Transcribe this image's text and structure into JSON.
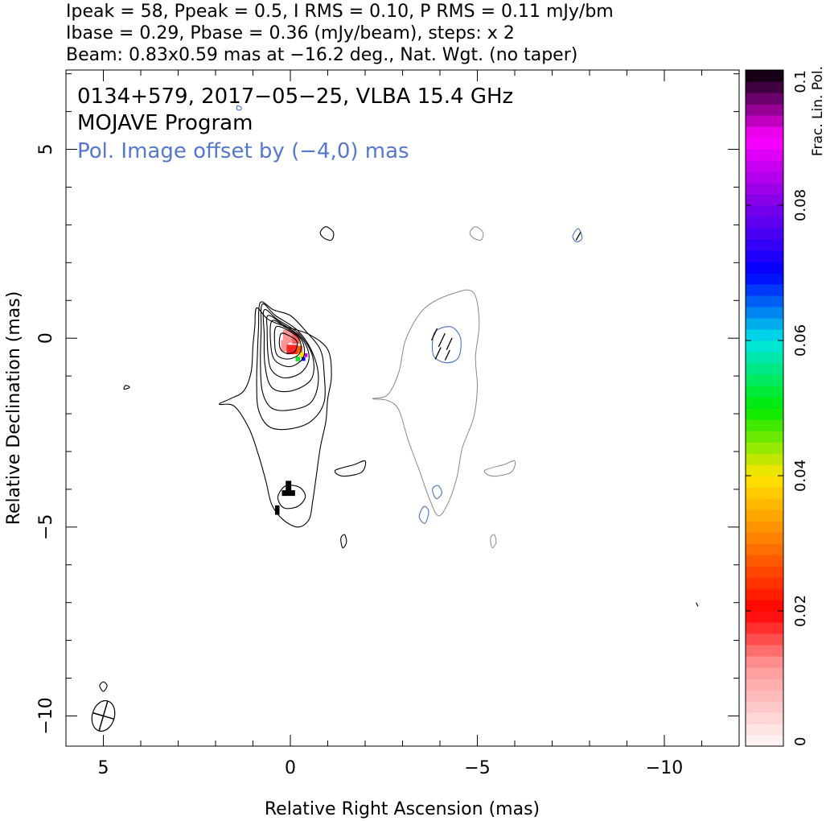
{
  "header": {
    "line1": "Ipeak = 58, Ppeak = 0.5, I RMS = 0.10, P RMS = 0.11 mJy/bm",
    "line2": "Ibase = 0.29, Pbase = 0.36 (mJy/beam), steps: x 2",
    "line3": "Beam: 0.83x0.59 mas at −16.2 deg., Nat. Wgt. (no taper)"
  },
  "chart_data": {
    "type": "contour",
    "title": "0134+579, 2017−05−25, VLBA 15.4 GHz",
    "subtitle": "MOJAVE Program",
    "annotation": "Pol. Image offset by (−4,0) mas",
    "xlabel": "Relative Right Ascension (mas)",
    "ylabel": "Relative Declination (mas)",
    "xlim": [
      6,
      -12
    ],
    "ylim": [
      -10.8,
      7.1
    ],
    "x_ticks": [
      5,
      0,
      -5,
      -10
    ],
    "y_ticks": [
      5,
      0,
      -5,
      -10
    ],
    "x_tick_labels": [
      "5",
      "0",
      "−5",
      "−10"
    ],
    "y_tick_labels": [
      "5",
      "0",
      "−5",
      "−10"
    ],
    "colorbar": {
      "label": "Frac. Lin. Pol.",
      "range": [
        0,
        0.1
      ],
      "ticks": [
        0,
        0.02,
        0.04,
        0.06,
        0.08,
        0.1
      ],
      "tick_labels": [
        "0",
        "0.02",
        "0.04",
        "0.06",
        "0.08",
        "0.1"
      ]
    },
    "beam": {
      "major_mas": 0.83,
      "minor_mas": 0.59,
      "pa_deg": -16.2,
      "center": [
        5,
        -10.0
      ]
    },
    "contour_levels_mjy": [
      0.29,
      0.58,
      1.16,
      2.32,
      4.64,
      9.28,
      18.56,
      37.12
    ],
    "core": {
      "x": 0,
      "y": 0,
      "peak_mjy": 58
    },
    "total_intensity_contours": [
      {
        "level": 1,
        "points": [
          [
            0.9,
            0.8
          ],
          [
            0.6,
            0.5
          ],
          [
            0.1,
            0.3
          ],
          [
            -0.5,
            0.1
          ],
          [
            -1,
            -0.3
          ],
          [
            -1.1,
            -1
          ],
          [
            -1,
            -1.6
          ],
          [
            -0.95,
            -2.2
          ],
          [
            -0.8,
            -2.9
          ],
          [
            -0.7,
            -3.6
          ],
          [
            -0.6,
            -4.3
          ],
          [
            -0.5,
            -4.8
          ],
          [
            -0.2,
            -5
          ],
          [
            0.2,
            -4.8
          ],
          [
            0.5,
            -4.4
          ],
          [
            0.65,
            -3.8
          ],
          [
            0.85,
            -3.1
          ],
          [
            1.1,
            -2.4
          ],
          [
            1.5,
            -1.8
          ],
          [
            1.9,
            -1.75
          ],
          [
            1.6,
            -1.6
          ],
          [
            1.25,
            -1.4
          ],
          [
            1.05,
            -0.9
          ],
          [
            1,
            -0.2
          ],
          [
            0.95,
            0.3
          ]
        ]
      },
      {
        "level": 2,
        "points": [
          [
            0.8,
            0.95
          ],
          [
            0.45,
            0.75
          ],
          [
            0,
            0.6
          ],
          [
            -0.4,
            0.2
          ],
          [
            -0.8,
            -0.3
          ],
          [
            -0.9,
            -0.9
          ],
          [
            -0.9,
            -1.7
          ],
          [
            -0.55,
            -2.2
          ],
          [
            0,
            -2.4
          ],
          [
            0.55,
            -2.35
          ],
          [
            0.85,
            -1.9
          ],
          [
            0.9,
            -1.2
          ],
          [
            0.88,
            -0.4
          ],
          [
            0.85,
            0.3
          ]
        ]
      },
      {
        "level": 3,
        "points": [
          [
            0.75,
            0.9
          ],
          [
            0.4,
            0.6
          ],
          [
            -0.2,
            0.2
          ],
          [
            -0.6,
            -0.4
          ],
          [
            -0.75,
            -1.1
          ],
          [
            -0.55,
            -1.7
          ],
          [
            0,
            -1.9
          ],
          [
            0.5,
            -1.85
          ],
          [
            0.75,
            -1.4
          ],
          [
            0.8,
            -0.6
          ],
          [
            0.78,
            0.2
          ]
        ]
      },
      {
        "level": 4,
        "points": [
          [
            0.7,
            0.75
          ],
          [
            0.35,
            0.5
          ],
          [
            -0.25,
            0.1
          ],
          [
            -0.6,
            -0.5
          ],
          [
            -0.55,
            -1.1
          ],
          [
            0,
            -1.4
          ],
          [
            0.5,
            -1.3
          ],
          [
            0.68,
            -0.7
          ],
          [
            0.7,
            0.1
          ]
        ]
      },
      {
        "level": 5,
        "points": [
          [
            0.6,
            0.6
          ],
          [
            0.25,
            0.4
          ],
          [
            -0.3,
            0
          ],
          [
            -0.5,
            -0.5
          ],
          [
            -0.3,
            -0.9
          ],
          [
            0.15,
            -1.05
          ],
          [
            0.5,
            -0.85
          ],
          [
            0.6,
            -0.4
          ],
          [
            0.62,
            0.2
          ]
        ]
      },
      {
        "level": 6,
        "points": [
          [
            0.5,
            0.45
          ],
          [
            0.15,
            0.3
          ],
          [
            -0.3,
            -0.05
          ],
          [
            -0.35,
            -0.5
          ],
          [
            0,
            -0.75
          ],
          [
            0.4,
            -0.6
          ],
          [
            0.52,
            -0.2
          ]
        ]
      },
      {
        "level": 7,
        "points": [
          [
            0.38,
            0.3
          ],
          [
            0.05,
            0.2
          ],
          [
            -0.25,
            -0.05
          ],
          [
            -0.25,
            -0.4
          ],
          [
            0.05,
            -0.55
          ],
          [
            0.35,
            -0.45
          ],
          [
            0.42,
            -0.1
          ]
        ]
      },
      {
        "level": 8,
        "points": [
          [
            0.25,
            0.12
          ],
          [
            0,
            0.05
          ],
          [
            -0.18,
            -0.1
          ],
          [
            -0.12,
            -0.35
          ],
          [
            0.1,
            -0.4
          ],
          [
            0.28,
            -0.25
          ]
        ]
      },
      {
        "level": 1,
        "points": [
          [
            0.3,
            -4.1
          ],
          [
            0.1,
            -3.9
          ],
          [
            -0.25,
            -3.95
          ],
          [
            -0.4,
            -4.2
          ],
          [
            -0.2,
            -4.45
          ],
          [
            0.15,
            -4.5
          ],
          [
            0.32,
            -4.3
          ]
        ]
      },
      {
        "level": 1,
        "points": [
          [
            -1.2,
            -3.5
          ],
          [
            -1.7,
            -3.35
          ],
          [
            -2,
            -3.25
          ],
          [
            -1.9,
            -3.55
          ],
          [
            -1.4,
            -3.65
          ]
        ]
      },
      {
        "level": 1,
        "points": [
          [
            -0.8,
            2.8
          ],
          [
            -0.9,
            2.65
          ],
          [
            -1.1,
            2.6
          ],
          [
            -1.15,
            2.8
          ],
          [
            -0.95,
            2.95
          ]
        ]
      },
      {
        "level": 1,
        "points": [
          [
            -1.35,
            -5.3
          ],
          [
            -1.45,
            -5.2
          ],
          [
            -1.5,
            -5.4
          ],
          [
            -1.4,
            -5.55
          ]
        ]
      },
      {
        "level": 1,
        "points": [
          [
            4.3,
            -1.3
          ],
          [
            4.4,
            -1.25
          ],
          [
            4.45,
            -1.35
          ]
        ]
      },
      {
        "level": 1,
        "points": [
          [
            5,
            -9.1
          ],
          [
            4.9,
            -9.2
          ],
          [
            5,
            -9.35
          ],
          [
            5.1,
            -9.2
          ]
        ]
      },
      {
        "level": 1,
        "points": [
          [
            -10.85,
            -7.0
          ],
          [
            -10.9,
            -7.1
          ]
        ]
      }
    ],
    "offset_image_contours": [
      {
        "points": [
          [
            -4.9,
            1.2
          ],
          [
            -4.4,
            1.2
          ],
          [
            -3.6,
            0.8
          ],
          [
            -3.1,
            0
          ],
          [
            -2.9,
            -0.9
          ],
          [
            -2.6,
            -1.5
          ],
          [
            -2.2,
            -1.6
          ],
          [
            -2.6,
            -1.65
          ],
          [
            -2.9,
            -1.9
          ],
          [
            -3.15,
            -2.7
          ],
          [
            -3.45,
            -3.5
          ],
          [
            -3.7,
            -4.2
          ],
          [
            -3.95,
            -4.7
          ],
          [
            -4.2,
            -4.4
          ],
          [
            -4.45,
            -3.7
          ],
          [
            -4.6,
            -2.9
          ],
          [
            -4.9,
            -2.1
          ],
          [
            -5,
            -1.3
          ],
          [
            -4.95,
            -0.5
          ],
          [
            -5.05,
            0.4
          ]
        ]
      },
      {
        "points": [
          [
            -5.2,
            -3.5
          ],
          [
            -5.7,
            -3.35
          ],
          [
            -6,
            -3.25
          ],
          [
            -5.9,
            -3.55
          ],
          [
            -5.4,
            -3.65
          ]
        ]
      },
      {
        "points": [
          [
            -4.8,
            2.8
          ],
          [
            -4.9,
            2.65
          ],
          [
            -5.1,
            2.6
          ],
          [
            -5.15,
            2.8
          ],
          [
            -4.95,
            2.95
          ]
        ]
      },
      {
        "points": [
          [
            -5.35,
            -5.3
          ],
          [
            -5.45,
            -5.2
          ],
          [
            -5.5,
            -5.4
          ],
          [
            -5.4,
            -5.55
          ]
        ]
      }
    ],
    "polarization_contours": [
      {
        "points": [
          [
            -3.9,
            0.2
          ],
          [
            -4.3,
            0.3
          ],
          [
            -4.55,
            0
          ],
          [
            -4.5,
            -0.5
          ],
          [
            -4.2,
            -0.65
          ],
          [
            -3.85,
            -0.5
          ],
          [
            -3.8,
            -0.1
          ]
        ]
      },
      {
        "points": [
          [
            -3.8,
            -4.0
          ],
          [
            -3.95,
            -3.9
          ],
          [
            -4.05,
            -4.1
          ],
          [
            -3.9,
            -4.25
          ]
        ]
      },
      {
        "points": [
          [
            -3.5,
            -4.55
          ],
          [
            -3.6,
            -4.45
          ],
          [
            -3.7,
            -4.6
          ],
          [
            -3.6,
            -4.9
          ],
          [
            -3.45,
            -4.75
          ]
        ]
      },
      {
        "points": [
          [
            -7.8,
            2.65
          ],
          [
            -7.65,
            2.55
          ],
          [
            -7.55,
            2.7
          ],
          [
            -7.7,
            2.9
          ]
        ]
      },
      {
        "points": [
          [
            1.42,
            6.15
          ],
          [
            1.32,
            6.12
          ],
          [
            1.32,
            6.05
          ],
          [
            1.42,
            6.05
          ]
        ]
      }
    ],
    "evpa_vectors": [
      {
        "x": -3.85,
        "y": 0.1,
        "angle_deg": 65,
        "len": 0.35
      },
      {
        "x": -4.05,
        "y": -0.05,
        "angle_deg": 65,
        "len": 0.4
      },
      {
        "x": -4.25,
        "y": -0.15,
        "angle_deg": 65,
        "len": 0.35
      },
      {
        "x": -3.95,
        "y": -0.4,
        "angle_deg": 65,
        "len": 0.35
      },
      {
        "x": -4.2,
        "y": -0.45,
        "angle_deg": 65,
        "len": 0.3
      },
      {
        "x": -7.7,
        "y": 2.7,
        "angle_deg": 60,
        "len": 0.25
      }
    ],
    "frac_pol_pixels": [
      {
        "x": 0.05,
        "y": 0.05,
        "w": 0.3,
        "h": 0.35,
        "v": 0.012
      },
      {
        "x": -0.15,
        "y": 0.0,
        "w": 0.2,
        "h": 0.3,
        "v": 0.015
      },
      {
        "x": 0.15,
        "y": -0.2,
        "w": 0.2,
        "h": 0.3,
        "v": 0.012
      },
      {
        "x": -0.05,
        "y": -0.3,
        "w": 0.3,
        "h": 0.25,
        "v": 0.018
      },
      {
        "x": -0.25,
        "y": -0.3,
        "w": 0.15,
        "h": 0.2,
        "v": 0.028
      },
      {
        "x": -0.3,
        "y": -0.45,
        "w": 0.12,
        "h": 0.15,
        "v": 0.04
      },
      {
        "x": -0.2,
        "y": -0.55,
        "w": 0.12,
        "h": 0.12,
        "v": 0.052
      },
      {
        "x": -0.35,
        "y": -0.55,
        "w": 0.1,
        "h": 0.1,
        "v": 0.07
      },
      {
        "x": -0.42,
        "y": -0.45,
        "w": 0.08,
        "h": 0.1,
        "v": 0.085
      },
      {
        "x": 0.05,
        "y": -4.1,
        "w": 0.35,
        "h": 0.15,
        "v": 0.1
      },
      {
        "x": 0.05,
        "y": -3.95,
        "w": 0.15,
        "h": 0.35,
        "v": 0.1
      },
      {
        "x": 0.35,
        "y": -4.55,
        "w": 0.12,
        "h": 0.25,
        "v": 0.1
      }
    ]
  }
}
